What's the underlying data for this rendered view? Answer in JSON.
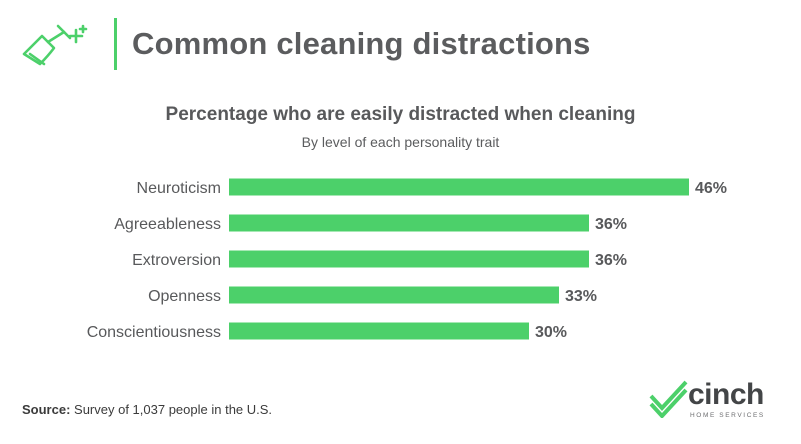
{
  "header": {
    "title": "Common cleaning distractions",
    "icon": "squeegee-sparkle-icon",
    "accent_color": "#4cd06a"
  },
  "source": {
    "label": "Source:",
    "text": "Survey of 1,037 people in the U.S."
  },
  "logo": {
    "name": "cinch",
    "tagline": "HOME SERVICES",
    "icon": "checkmark-logo-icon"
  },
  "chart_data": {
    "type": "bar",
    "orientation": "horizontal",
    "title": "Percentage who are easily distracted when cleaning",
    "subtitle": "By level of each personality trait",
    "categories": [
      "Neuroticism",
      "Agreeableness",
      "Extroversion",
      "Openness",
      "Conscientiousness"
    ],
    "values": [
      46,
      36,
      36,
      33,
      30
    ],
    "value_labels": [
      "46%",
      "36%",
      "36%",
      "33%",
      "30%"
    ],
    "unit": "%",
    "xlim": [
      0,
      46
    ],
    "grid": false,
    "bar_color": "#4cd06a"
  }
}
